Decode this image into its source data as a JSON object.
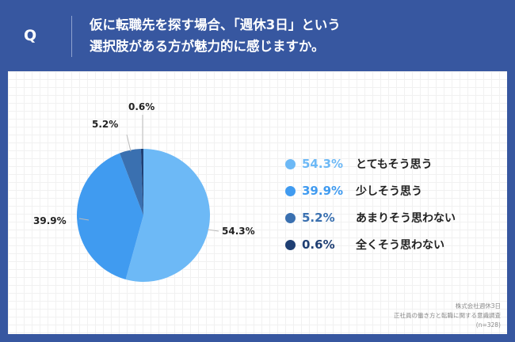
{
  "header": {
    "q": "Q",
    "title_line1": "仮に転職先を探す場合、「週休3日」という",
    "title_line2": "選択肢がある方が魅力的に感じますか。"
  },
  "chart_data": {
    "type": "pie",
    "start": "top",
    "direction": "clockwise",
    "categories": [
      "とてもそう思う",
      "少しそう思う",
      "あまりそう思わない",
      "全くそう思わない"
    ],
    "values": [
      54.3,
      39.9,
      5.2,
      0.6
    ],
    "labels": [
      "54.3%",
      "39.9%",
      "5.2%",
      "0.6%"
    ],
    "colors": [
      "#6db9f6",
      "#409bf0",
      "#3a70b0",
      "#1f3f73"
    ],
    "legend": "right"
  },
  "source": {
    "line1": "株式会社週休3日",
    "line2": "正社員の働き方と転職に関する意識調査",
    "line3": "(n=328)"
  }
}
